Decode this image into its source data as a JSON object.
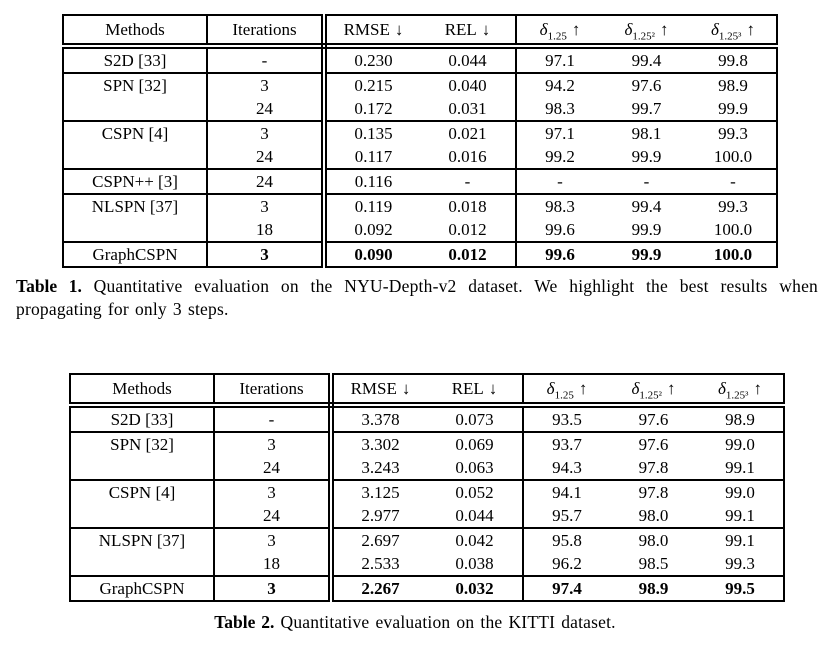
{
  "page": {
    "background": "#ffffff",
    "text_color": "#000000",
    "border_color": "#000000"
  },
  "tables": [
    {
      "id": "nyu-depth-v2",
      "headers": {
        "methods": "Methods",
        "iterations": "Iterations",
        "rmse": {
          "label": "RMSE",
          "arrow": "↓"
        },
        "rel": {
          "label": "REL",
          "arrow": "↓"
        },
        "delta1": {
          "symbol": "δ",
          "sub": "1.25",
          "arrow": "↑"
        },
        "delta2": {
          "symbol": "δ",
          "sub": "1.25²",
          "arrow": "↑"
        },
        "delta3": {
          "symbol": "δ",
          "sub": "1.25³",
          "arrow": "↑"
        }
      },
      "rows": [
        {
          "method": "S2D [33]",
          "iterations": "-",
          "rmse": "0.230",
          "rel": "0.044",
          "d1": "97.1",
          "d2": "99.4",
          "d3": "99.8",
          "sep": false,
          "best": false
        },
        {
          "method": "SPN [32]",
          "iterations": "3",
          "rmse": "0.215",
          "rel": "0.040",
          "d1": "94.2",
          "d2": "97.6",
          "d3": "98.9",
          "sep": true,
          "best": false
        },
        {
          "method": "",
          "iterations": "24",
          "rmse": "0.172",
          "rel": "0.031",
          "d1": "98.3",
          "d2": "99.7",
          "d3": "99.9",
          "sep": false,
          "best": false
        },
        {
          "method": "CSPN [4]",
          "iterations": "3",
          "rmse": "0.135",
          "rel": "0.021",
          "d1": "97.1",
          "d2": "98.1",
          "d3": "99.3",
          "sep": true,
          "best": false
        },
        {
          "method": "",
          "iterations": "24",
          "rmse": "0.117",
          "rel": "0.016",
          "d1": "99.2",
          "d2": "99.9",
          "d3": "100.0",
          "sep": false,
          "best": false
        },
        {
          "method": "CSPN++ [3]",
          "iterations": "24",
          "rmse": "0.116",
          "rel": "-",
          "d1": "-",
          "d2": "-",
          "d3": "-",
          "sep": true,
          "best": false
        },
        {
          "method": "NLSPN [37]",
          "iterations": "3",
          "rmse": "0.119",
          "rel": "0.018",
          "d1": "98.3",
          "d2": "99.4",
          "d3": "99.3",
          "sep": true,
          "best": false
        },
        {
          "method": "",
          "iterations": "18",
          "rmse": "0.092",
          "rel": "0.012",
          "d1": "99.6",
          "d2": "99.9",
          "d3": "100.0",
          "sep": false,
          "best": false
        },
        {
          "method": "GraphCSPN",
          "iterations": "3",
          "rmse": "0.090",
          "rel": "0.012",
          "d1": "99.6",
          "d2": "99.9",
          "d3": "100.0",
          "sep": true,
          "best": true
        }
      ],
      "caption": {
        "label": "Table 1.",
        "text": "Quantitative evaluation on the NYU-Depth-v2 dataset. We highlight the best results when propagating for only 3 steps."
      }
    },
    {
      "id": "kitti",
      "headers": {
        "methods": "Methods",
        "iterations": "Iterations",
        "rmse": {
          "label": "RMSE",
          "arrow": "↓"
        },
        "rel": {
          "label": "REL",
          "arrow": "↓"
        },
        "delta1": {
          "symbol": "δ",
          "sub": "1.25",
          "arrow": "↑"
        },
        "delta2": {
          "symbol": "δ",
          "sub": "1.25²",
          "arrow": "↑"
        },
        "delta3": {
          "symbol": "δ",
          "sub": "1.25³",
          "arrow": "↑"
        }
      },
      "rows": [
        {
          "method": "S2D [33]",
          "iterations": "-",
          "rmse": "3.378",
          "rel": "0.073",
          "d1": "93.5",
          "d2": "97.6",
          "d3": "98.9",
          "sep": false,
          "best": false
        },
        {
          "method": "SPN [32]",
          "iterations": "3",
          "rmse": "3.302",
          "rel": "0.069",
          "d1": "93.7",
          "d2": "97.6",
          "d3": "99.0",
          "sep": true,
          "best": false
        },
        {
          "method": "",
          "iterations": "24",
          "rmse": "3.243",
          "rel": "0.063",
          "d1": "94.3",
          "d2": "97.8",
          "d3": "99.1",
          "sep": false,
          "best": false
        },
        {
          "method": "CSPN [4]",
          "iterations": "3",
          "rmse": "3.125",
          "rel": "0.052",
          "d1": "94.1",
          "d2": "97.8",
          "d3": "99.0",
          "sep": true,
          "best": false
        },
        {
          "method": "",
          "iterations": "24",
          "rmse": "2.977",
          "rel": "0.044",
          "d1": "95.7",
          "d2": "98.0",
          "d3": "99.1",
          "sep": false,
          "best": false
        },
        {
          "method": "NLSPN [37]",
          "iterations": "3",
          "rmse": "2.697",
          "rel": "0.042",
          "d1": "95.8",
          "d2": "98.0",
          "d3": "99.1",
          "sep": true,
          "best": false
        },
        {
          "method": "",
          "iterations": "18",
          "rmse": "2.533",
          "rel": "0.038",
          "d1": "96.2",
          "d2": "98.5",
          "d3": "99.3",
          "sep": false,
          "best": false
        },
        {
          "method": "GraphCSPN",
          "iterations": "3",
          "rmse": "2.267",
          "rel": "0.032",
          "d1": "97.4",
          "d2": "98.9",
          "d3": "99.5",
          "sep": true,
          "best": true
        }
      ],
      "caption": {
        "label": "Table 2.",
        "text": "Quantitative evaluation on the KITTI dataset."
      }
    }
  ]
}
